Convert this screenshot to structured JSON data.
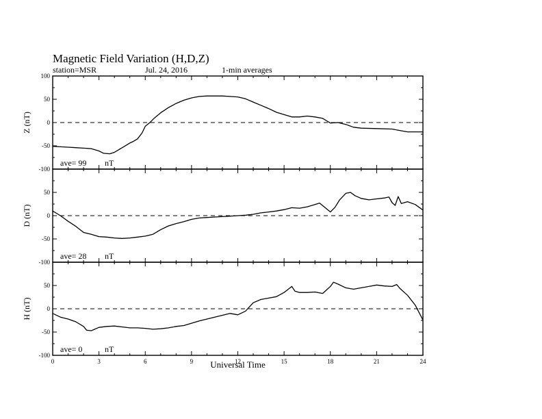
{
  "header": {
    "title": "Magnetic Field Variation (H,D,Z)",
    "station": "station=MSR",
    "date": "Jul. 24, 2016",
    "resolution": "1-min averages"
  },
  "chart_data": {
    "type": "line",
    "xlabel": "Universal Time",
    "xlim": [
      0,
      24
    ],
    "xticks": [
      0,
      3,
      6,
      9,
      12,
      15,
      18,
      21,
      24
    ],
    "ylim": [
      -100,
      100
    ],
    "yticks": [
      -100,
      -50,
      0,
      50,
      100
    ],
    "grid": false,
    "zero_line": "dashed",
    "panels": [
      {
        "name": "Z",
        "ylabel": "Z (nT)",
        "ave_label": "ave= 99",
        "unit": "nT",
        "points": [
          [
            0,
            -51
          ],
          [
            0.5,
            -52
          ],
          [
            1,
            -53
          ],
          [
            1.5,
            -54
          ],
          [
            2,
            -55
          ],
          [
            2.5,
            -56
          ],
          [
            3,
            -61
          ],
          [
            3.3,
            -66
          ],
          [
            3.7,
            -67
          ],
          [
            4,
            -64
          ],
          [
            4.3,
            -58
          ],
          [
            4.6,
            -52
          ],
          [
            5,
            -44
          ],
          [
            5.2,
            -41
          ],
          [
            5.5,
            -35
          ],
          [
            5.8,
            -22
          ],
          [
            6,
            -8
          ],
          [
            6.3,
            0
          ],
          [
            6.6,
            10
          ],
          [
            7,
            21
          ],
          [
            7.5,
            32
          ],
          [
            8,
            41
          ],
          [
            8.5,
            48
          ],
          [
            9,
            53
          ],
          [
            9.5,
            56
          ],
          [
            10,
            57
          ],
          [
            10.5,
            57
          ],
          [
            11,
            57
          ],
          [
            11.5,
            56
          ],
          [
            12,
            55
          ],
          [
            12.5,
            51
          ],
          [
            13,
            44
          ],
          [
            13.5,
            37
          ],
          [
            14,
            30
          ],
          [
            14.5,
            22
          ],
          [
            15,
            17
          ],
          [
            15.5,
            12
          ],
          [
            16,
            12
          ],
          [
            16.5,
            14
          ],
          [
            17,
            12
          ],
          [
            17.5,
            9
          ],
          [
            17.8,
            3
          ],
          [
            18,
            -1
          ],
          [
            18.5,
            0
          ],
          [
            19,
            -4
          ],
          [
            19.5,
            -10
          ],
          [
            20,
            -12
          ],
          [
            21,
            -13
          ],
          [
            22,
            -14
          ],
          [
            22.5,
            -17
          ],
          [
            23,
            -20
          ],
          [
            23.5,
            -20
          ],
          [
            24,
            -20
          ]
        ]
      },
      {
        "name": "D",
        "ylabel": "D (nT)",
        "ave_label": "ave= 28",
        "unit": "nT",
        "points": [
          [
            0,
            10
          ],
          [
            0.5,
            0
          ],
          [
            1,
            -12
          ],
          [
            1.5,
            -23
          ],
          [
            2,
            -36
          ],
          [
            2.5,
            -40
          ],
          [
            3,
            -45
          ],
          [
            3.5,
            -46
          ],
          [
            4,
            -48
          ],
          [
            4.5,
            -49
          ],
          [
            5,
            -48
          ],
          [
            5.5,
            -46
          ],
          [
            6,
            -44
          ],
          [
            6.5,
            -40
          ],
          [
            7,
            -30
          ],
          [
            7.5,
            -22
          ],
          [
            8,
            -17
          ],
          [
            8.5,
            -13
          ],
          [
            9,
            -8
          ],
          [
            9.5,
            -5
          ],
          [
            10,
            -4
          ],
          [
            10.5,
            -3
          ],
          [
            11,
            -2
          ],
          [
            11.5,
            -1
          ],
          [
            12,
            0
          ],
          [
            12.5,
            1
          ],
          [
            13,
            3
          ],
          [
            13.5,
            6
          ],
          [
            14,
            8
          ],
          [
            14.5,
            10
          ],
          [
            15,
            13
          ],
          [
            15.5,
            17
          ],
          [
            16,
            16
          ],
          [
            16.5,
            19
          ],
          [
            17,
            24
          ],
          [
            17.3,
            27
          ],
          [
            17.6,
            19
          ],
          [
            18,
            8
          ],
          [
            18.3,
            18
          ],
          [
            18.6,
            34
          ],
          [
            19,
            48
          ],
          [
            19.3,
            50
          ],
          [
            19.6,
            43
          ],
          [
            20,
            37
          ],
          [
            20.5,
            34
          ],
          [
            21,
            36
          ],
          [
            21.5,
            38
          ],
          [
            21.8,
            40
          ],
          [
            22,
            28
          ],
          [
            22.2,
            22
          ],
          [
            22.4,
            41
          ],
          [
            22.6,
            26
          ],
          [
            23,
            30
          ],
          [
            23.5,
            24
          ],
          [
            24,
            12
          ]
        ]
      },
      {
        "name": "H",
        "ylabel": "H (nT)",
        "ave_label": "ave= 0",
        "unit": "nT",
        "points": [
          [
            0,
            -10
          ],
          [
            0.5,
            -18
          ],
          [
            1,
            -22
          ],
          [
            1.5,
            -28
          ],
          [
            2,
            -38
          ],
          [
            2.2,
            -46
          ],
          [
            2.5,
            -47
          ],
          [
            3,
            -40
          ],
          [
            3.5,
            -38
          ],
          [
            4,
            -37
          ],
          [
            4.5,
            -39
          ],
          [
            5,
            -41
          ],
          [
            5.5,
            -41
          ],
          [
            6,
            -42
          ],
          [
            6.5,
            -44
          ],
          [
            7,
            -43
          ],
          [
            7.5,
            -41
          ],
          [
            8,
            -38
          ],
          [
            8.5,
            -36
          ],
          [
            9,
            -31
          ],
          [
            9.5,
            -26
          ],
          [
            10,
            -22
          ],
          [
            10.5,
            -18
          ],
          [
            11,
            -14
          ],
          [
            11.5,
            -10
          ],
          [
            12,
            -13
          ],
          [
            12.5,
            -5
          ],
          [
            13,
            13
          ],
          [
            13.5,
            20
          ],
          [
            14,
            23
          ],
          [
            14.5,
            26
          ],
          [
            15,
            35
          ],
          [
            15.2,
            40
          ],
          [
            15.5,
            48
          ],
          [
            15.7,
            38
          ],
          [
            16,
            35
          ],
          [
            16.5,
            35
          ],
          [
            17,
            36
          ],
          [
            17.5,
            33
          ],
          [
            18,
            48
          ],
          [
            18.2,
            57
          ],
          [
            18.5,
            53
          ],
          [
            19,
            45
          ],
          [
            19.5,
            42
          ],
          [
            20,
            45
          ],
          [
            20.5,
            48
          ],
          [
            21,
            51
          ],
          [
            21.5,
            49
          ],
          [
            22,
            48
          ],
          [
            22.3,
            52
          ],
          [
            22.5,
            44
          ],
          [
            23,
            29
          ],
          [
            23.5,
            8
          ],
          [
            24,
            -24
          ]
        ]
      }
    ]
  }
}
